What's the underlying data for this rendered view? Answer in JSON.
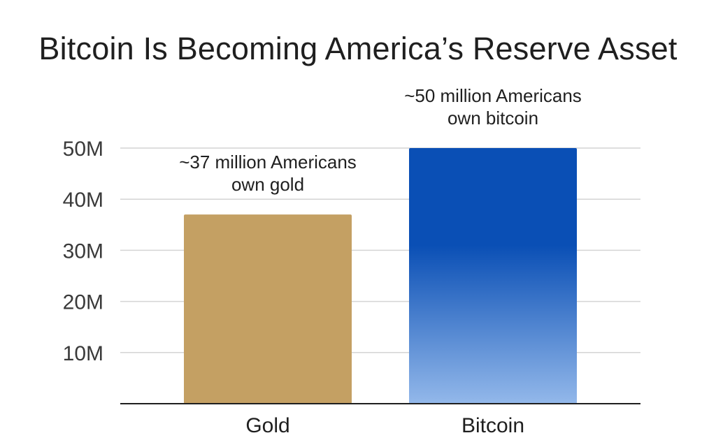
{
  "chart_data": {
    "type": "bar",
    "title": "Bitcoin Is Becoming America’s Reserve Asset",
    "categories": [
      "Gold",
      "Bitcoin"
    ],
    "values": [
      37000000,
      50000000
    ],
    "annotations": [
      [
        "~37 million Americans",
        "own gold"
      ],
      [
        "~50 million Americans",
        "own bitcoin"
      ]
    ],
    "y_ticks": [
      10000000,
      20000000,
      30000000,
      40000000,
      50000000
    ],
    "y_tick_labels": [
      "10M",
      "20M",
      "30M",
      "40M",
      "50M"
    ],
    "ylim": [
      0,
      55000000
    ],
    "grid": true,
    "legend": "none",
    "colors": {
      "gold": "#c4a063",
      "bitcoin_top": "#0a4fb5",
      "bitcoin_bottom": "#93b8ea",
      "grid": "#d4d4d4",
      "axis": "#1f1f1f"
    }
  }
}
